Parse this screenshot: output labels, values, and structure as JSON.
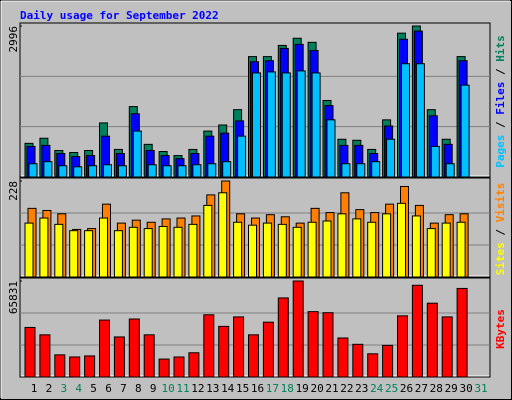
{
  "chart_data": [
    {
      "type": "bar",
      "title": "Daily usage for September 2022",
      "categories": [
        "1",
        "2",
        "3",
        "4",
        "5",
        "6",
        "7",
        "8",
        "9",
        "10",
        "11",
        "12",
        "13",
        "14",
        "15",
        "16",
        "17",
        "18",
        "19",
        "20",
        "21",
        "22",
        "23",
        "24",
        "25",
        "26",
        "27",
        "28",
        "29",
        "30",
        "31"
      ],
      "category_colors": [
        "#000000",
        "#000000",
        "#00805c",
        "#00805c",
        "#000000",
        "#000000",
        "#000000",
        "#000000",
        "#000000",
        "#00805c",
        "#00805c",
        "#000000",
        "#000000",
        "#000000",
        "#000000",
        "#000000",
        "#00805c",
        "#00805c",
        "#000000",
        "#000000",
        "#000000",
        "#000000",
        "#000000",
        "#00805c",
        "#00805c",
        "#000000",
        "#000000",
        "#000000",
        "#000000",
        "#000000",
        "#00805c"
      ],
      "ylim": [
        0,
        2996
      ],
      "yticks": [
        2996
      ],
      "legend_separator": " / ",
      "series": [
        {
          "name": "Hits",
          "color": "#00805c",
          "values": [
            668,
            769,
            526,
            486,
            526,
            1073,
            547,
            1397,
            648,
            506,
            425,
            547,
            911,
            1032,
            1336,
            2389,
            2389,
            2611,
            2753,
            2672,
            1518,
            749,
            729,
            547,
            1134,
            2854,
            2996,
            1336,
            749,
            2389,
            null
          ]
        },
        {
          "name": "Files",
          "color": "#0000ff",
          "values": [
            607,
            627,
            466,
            405,
            425,
            810,
            466,
            1255,
            526,
            425,
            364,
            466,
            810,
            870,
            1113,
            2287,
            2308,
            2551,
            2632,
            2510,
            1417,
            627,
            627,
            466,
            1012,
            2733,
            2895,
            1215,
            648,
            2308,
            null
          ]
        },
        {
          "name": "Pages",
          "color": "#00c0ff",
          "values": [
            263,
            304,
            223,
            202,
            223,
            243,
            223,
            911,
            243,
            223,
            223,
            243,
            263,
            304,
            810,
            2065,
            2085,
            2065,
            2105,
            2065,
            1134,
            263,
            263,
            304,
            749,
            2247,
            2247,
            607,
            263,
            1822,
            null
          ]
        }
      ]
    },
    {
      "type": "bar",
      "ylim": [
        0,
        228
      ],
      "yticks": [
        228
      ],
      "legend_separator": " / ",
      "series": [
        {
          "name": "Visits",
          "color": "#ff8000",
          "values": [
            163,
            158,
            150,
            113,
            115,
            173,
            128,
            135,
            130,
            138,
            140,
            145,
            195,
            228,
            150,
            140,
            148,
            143,
            128,
            163,
            153,
            200,
            160,
            153,
            173,
            215,
            170,
            128,
            148,
            150,
            null
          ]
        },
        {
          "name": "Sites",
          "color": "#ffff00",
          "values": [
            128,
            140,
            125,
            110,
            110,
            140,
            110,
            118,
            115,
            120,
            118,
            125,
            170,
            200,
            130,
            123,
            128,
            125,
            118,
            130,
            133,
            150,
            138,
            130,
            150,
            175,
            145,
            115,
            128,
            130,
            null
          ]
        }
      ]
    },
    {
      "type": "bar",
      "ylim": [
        0,
        65831
      ],
      "yticks": [
        65831
      ],
      "series": [
        {
          "name": "KBytes",
          "color": "#ff0000",
          "values": [
            33981,
            28920,
            15183,
            13737,
            14460,
            39042,
            27474,
            39765,
            28920,
            12291,
            13737,
            16629,
            42657,
            34704,
            41211,
            28920,
            37596,
            54225,
            65831,
            44826,
            44103,
            26751,
            22413,
            15906,
            21690,
            41934,
            62901,
            50610,
            41211,
            60732,
            null
          ]
        }
      ]
    }
  ]
}
